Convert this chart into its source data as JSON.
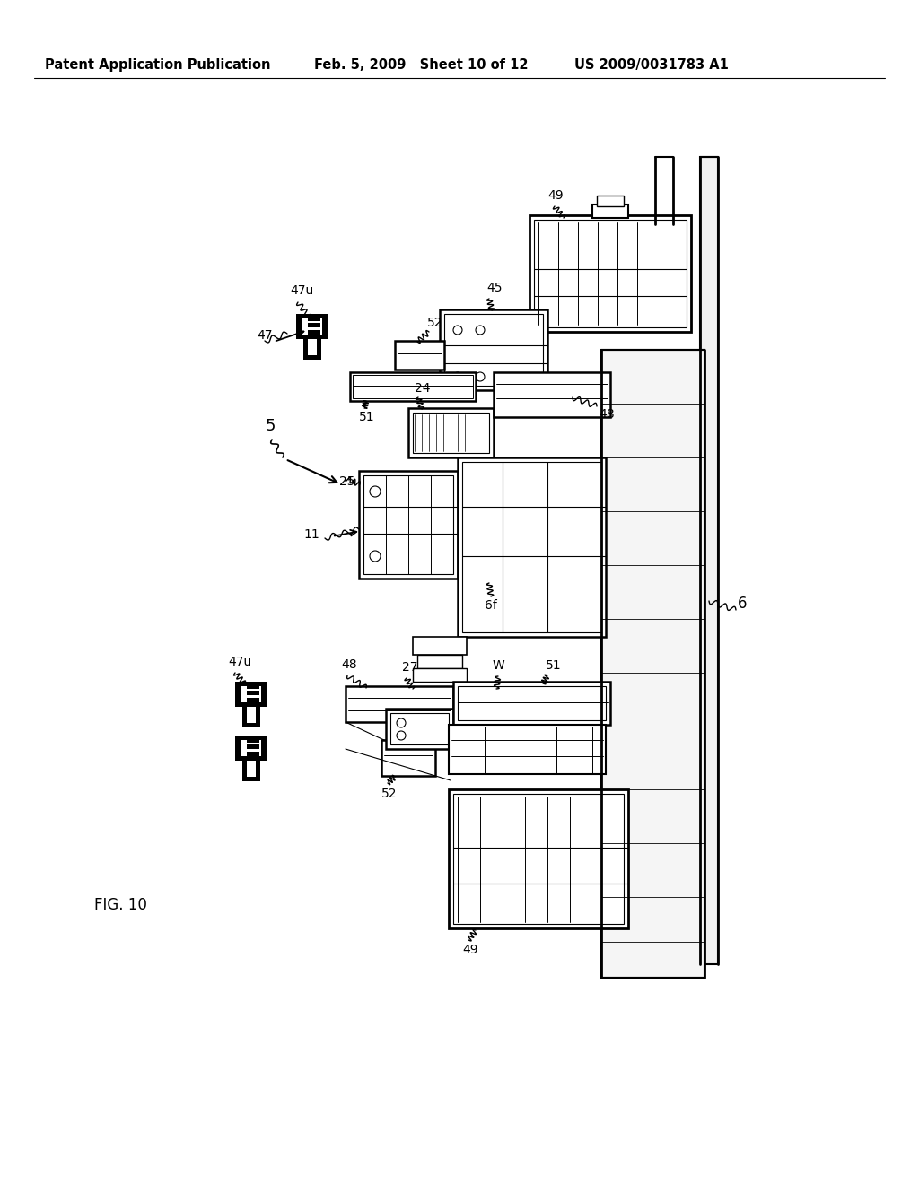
{
  "background_color": "#ffffff",
  "header_left": "Patent Application Publication",
  "header_center": "Feb. 5, 2009   Sheet 10 of 12",
  "header_right": "US 2009/0031783 A1",
  "figure_label": "FIG. 10",
  "header_fontsize": 10.5,
  "figure_label_fontsize": 12,
  "line_color": "#000000",
  "text_color": "#000000",
  "gray_color": "#888888"
}
